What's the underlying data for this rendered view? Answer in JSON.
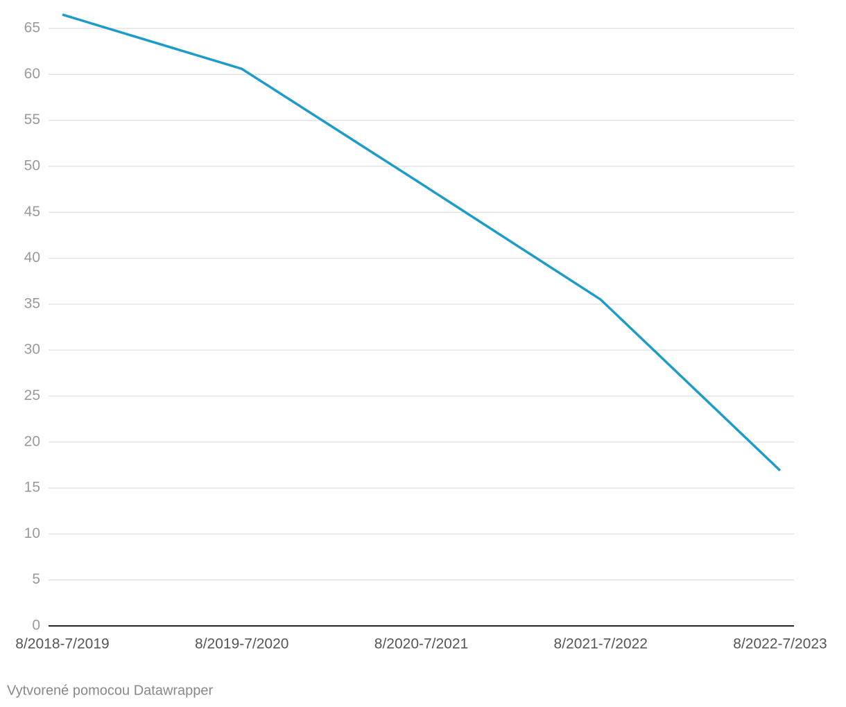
{
  "chart_data": {
    "type": "line",
    "categories": [
      "8/2018-7/2019",
      "8/2019-7/2020",
      "8/2020-7/2021",
      "8/2021-7/2022",
      "8/2022-7/2023"
    ],
    "series": [
      {
        "name": null,
        "color": "#1d9bc9",
        "values": [
          66.5,
          60.6,
          48.1,
          35.5,
          16.9
        ]
      }
    ],
    "ylim": [
      0,
      65
    ],
    "yticks": [
      0,
      5,
      10,
      15,
      20,
      25,
      30,
      35,
      40,
      45,
      50,
      55,
      60,
      65
    ],
    "grid": true,
    "footer": "Vytvorené pomocou Datawrapper"
  }
}
